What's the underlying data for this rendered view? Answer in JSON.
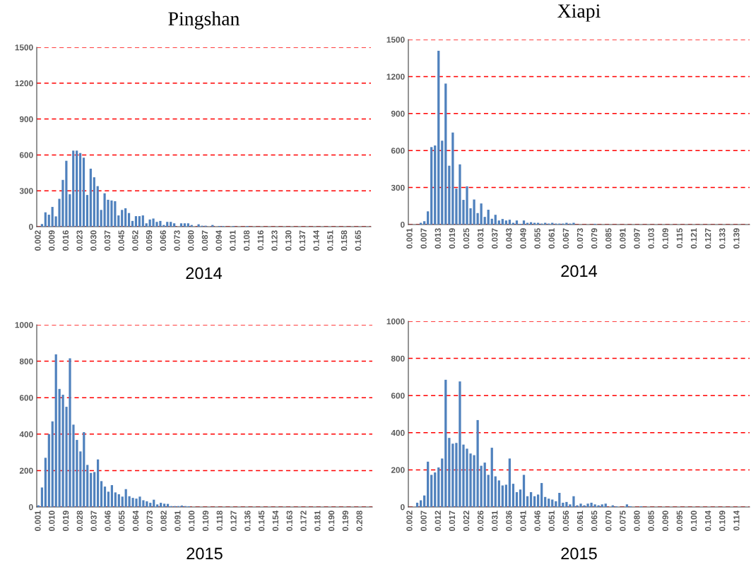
{
  "chart_data": [
    {
      "type": "bar",
      "title": "Pingshan",
      "xlabel": "2014",
      "color": "#4f81bd",
      "grid": "y",
      "ylim": [
        0,
        1500
      ],
      "yticks": [
        0,
        300,
        600,
        900,
        1200,
        1500
      ],
      "categories": [
        "0.002",
        null,
        null,
        null,
        "0.009",
        null,
        null,
        null,
        "0.016",
        null,
        null,
        null,
        "0.023",
        null,
        null,
        null,
        "0.030",
        null,
        null,
        null,
        "0.037",
        null,
        null,
        null,
        "0.045",
        null,
        null,
        null,
        "0.052",
        null,
        null,
        null,
        "0.059",
        null,
        null,
        null,
        "0.066",
        null,
        null,
        null,
        "0.073",
        null,
        null,
        null,
        "0.080",
        null,
        null,
        null,
        "0.087",
        null,
        null,
        null,
        "0.094",
        null,
        null,
        null,
        "0.101",
        null,
        null,
        null,
        "0.108",
        null,
        null,
        null,
        "0.116",
        null,
        null,
        null,
        "0.123",
        null,
        null,
        null,
        "0.130",
        null,
        null,
        null,
        "0.137",
        null,
        null,
        null,
        "0.144",
        null,
        null,
        null,
        "0.151",
        null,
        null,
        null,
        "0.158",
        null,
        null,
        null,
        "0.165",
        null,
        null,
        null
      ],
      "values": [
        0,
        22,
        120,
        100,
        165,
        86,
        233,
        391,
        551,
        271,
        636,
        636,
        616,
        577,
        265,
        485,
        413,
        339,
        140,
        279,
        225,
        219,
        213,
        94,
        140,
        154,
        114,
        48,
        88,
        88,
        94,
        28,
        60,
        68,
        40,
        48,
        14,
        40,
        40,
        28,
        0,
        28,
        28,
        28,
        14,
        0,
        20,
        8,
        8,
        0,
        14,
        0,
        6,
        6,
        0,
        0,
        6,
        0,
        0,
        0,
        6,
        0,
        0,
        0,
        0,
        0,
        0,
        0,
        0,
        0,
        0,
        0,
        0,
        0,
        0,
        0,
        0,
        0,
        0,
        0,
        0,
        0,
        0,
        0,
        0,
        0,
        0,
        0,
        0,
        0,
        0,
        0,
        0,
        0,
        0,
        0
      ]
    },
    {
      "type": "bar",
      "title": "Xiapi",
      "xlabel": "2014",
      "color": "#4f81bd",
      "grid": "y",
      "ylim": [
        0,
        1500
      ],
      "yticks": [
        0,
        300,
        600,
        900,
        1200,
        1500
      ],
      "categories": [
        "0.001",
        null,
        null,
        null,
        "0.007",
        null,
        null,
        null,
        "0.013",
        null,
        null,
        null,
        "0.019",
        null,
        null,
        null,
        "0.025",
        null,
        null,
        null,
        "0.031",
        null,
        null,
        null,
        "0.037",
        null,
        null,
        null,
        "0.043",
        null,
        null,
        null,
        "0.049",
        null,
        null,
        null,
        "0.055",
        null,
        null,
        null,
        "0.061",
        null,
        null,
        null,
        "0.067",
        null,
        null,
        null,
        "0.073",
        null,
        null,
        null,
        "0.079",
        null,
        null,
        null,
        "0.085",
        null,
        null,
        null,
        "0.091",
        null,
        null,
        null,
        "0.097",
        null,
        null,
        null,
        "0.103",
        null,
        null,
        null,
        "0.109",
        null,
        null,
        null,
        "0.115",
        null,
        null,
        null,
        "0.121",
        null,
        null,
        null,
        "0.127",
        null,
        null,
        null,
        "0.133",
        null,
        null,
        null,
        "0.139",
        null,
        null,
        null
      ],
      "values": [
        0,
        0,
        0,
        14,
        27,
        107,
        628,
        641,
        1409,
        680,
        1143,
        477,
        746,
        291,
        488,
        200,
        310,
        132,
        203,
        93,
        171,
        62,
        120,
        47,
        79,
        33,
        45,
        33,
        39,
        14,
        33,
        6,
        33,
        14,
        19,
        14,
        14,
        8,
        14,
        8,
        14,
        8,
        8,
        8,
        14,
        8,
        14,
        0,
        0,
        0,
        0,
        0,
        6,
        0,
        0,
        0,
        0,
        0,
        0,
        0,
        0,
        0,
        0,
        0,
        0,
        0,
        0,
        0,
        0,
        0,
        0,
        0,
        0,
        0,
        0,
        0,
        0,
        0,
        0,
        0,
        0,
        0,
        0,
        0,
        0,
        0,
        0,
        0,
        0,
        0,
        0,
        0,
        0,
        0,
        0,
        0
      ]
    },
    {
      "type": "bar",
      "xlabel": "2015",
      "color": "#4f81bd",
      "grid": "y",
      "ylim": [
        0,
        1000
      ],
      "yticks": [
        0,
        200,
        400,
        600,
        800,
        1000
      ],
      "categories": [
        "0.001",
        null,
        null,
        null,
        "0.010",
        null,
        null,
        null,
        "0.019",
        null,
        null,
        null,
        "0.028",
        null,
        null,
        null,
        "0.037",
        null,
        null,
        null,
        "0.046",
        null,
        null,
        null,
        "0.055",
        null,
        null,
        null,
        "0.064",
        null,
        null,
        null,
        "0.073",
        null,
        null,
        null,
        "0.082",
        null,
        null,
        null,
        "0.091",
        null,
        null,
        null,
        "0.100",
        null,
        null,
        null,
        "0.109",
        null,
        null,
        null,
        "0.118",
        null,
        null,
        null,
        "0.127",
        null,
        null,
        null,
        "0.136",
        null,
        null,
        null,
        "0.145",
        null,
        null,
        null,
        "0.154",
        null,
        null,
        null,
        "0.163",
        null,
        null,
        null,
        "0.172",
        null,
        null,
        null,
        "0.181",
        null,
        null,
        null,
        "0.190",
        null,
        null,
        null,
        "0.199",
        null,
        null,
        null,
        "0.208",
        null,
        null,
        null
      ],
      "values": [
        9,
        107,
        270,
        400,
        470,
        838,
        648,
        616,
        550,
        816,
        452,
        368,
        305,
        411,
        231,
        187,
        192,
        261,
        142,
        112,
        84,
        120,
        80,
        70,
        57,
        98,
        59,
        50,
        46,
        57,
        37,
        31,
        23,
        40,
        14,
        23,
        18,
        17,
        5,
        5,
        5,
        8,
        5,
        4,
        0,
        0,
        0,
        0,
        0,
        0,
        0,
        0,
        0,
        0,
        0,
        0,
        0,
        0,
        0,
        0,
        0,
        0,
        0,
        0,
        0,
        0,
        0,
        0,
        0,
        0,
        0,
        0,
        0,
        0,
        0,
        0,
        0,
        0,
        0,
        0,
        0,
        0,
        0,
        0,
        0,
        0,
        0,
        0,
        0,
        0,
        0,
        0,
        0,
        0,
        0,
        0
      ]
    },
    {
      "type": "bar",
      "xlabel": "2015",
      "color": "#4f81bd",
      "grid": "y",
      "ylim": [
        0,
        1000
      ],
      "yticks": [
        0,
        200,
        400,
        600,
        800,
        1000
      ],
      "categories": [
        "0.002",
        null,
        null,
        null,
        "0.007",
        null,
        null,
        null,
        "0.012",
        null,
        null,
        null,
        "0.017",
        null,
        null,
        null,
        "0.022",
        null,
        null,
        null,
        "0.026",
        null,
        null,
        null,
        "0.031",
        null,
        null,
        null,
        "0.036",
        null,
        null,
        null,
        "0.041",
        null,
        null,
        null,
        "0.046",
        null,
        null,
        null,
        "0.051",
        null,
        null,
        null,
        "0.056",
        null,
        null,
        null,
        "0.061",
        null,
        null,
        null,
        "0.065",
        null,
        null,
        null,
        "0.070",
        null,
        null,
        null,
        "0.075",
        null,
        null,
        null,
        "0.080",
        null,
        null,
        null,
        "0.085",
        null,
        null,
        null,
        "0.090",
        null,
        null,
        null,
        "0.095",
        null,
        null,
        null,
        "0.100",
        null,
        null,
        null,
        "0.104",
        null,
        null,
        null,
        "0.109",
        null,
        null,
        null,
        "0.114",
        null,
        null,
        null
      ],
      "values": [
        0,
        0,
        23,
        36,
        62,
        244,
        173,
        186,
        213,
        261,
        685,
        372,
        341,
        345,
        676,
        336,
        314,
        288,
        279,
        468,
        222,
        239,
        173,
        319,
        165,
        143,
        116,
        120,
        261,
        125,
        80,
        94,
        173,
        58,
        80,
        58,
        67,
        129,
        54,
        45,
        40,
        31,
        76,
        23,
        27,
        14,
        58,
        9,
        18,
        9,
        18,
        23,
        14,
        9,
        14,
        18,
        0,
        9,
        4,
        0,
        0,
        14,
        4,
        0,
        0,
        4,
        0,
        0,
        0,
        0,
        0,
        0,
        0,
        0,
        0,
        0,
        0,
        0,
        0,
        0,
        0,
        0,
        0,
        0,
        0,
        0,
        0,
        0,
        0,
        0,
        0,
        0,
        0,
        0,
        0,
        0
      ]
    }
  ]
}
